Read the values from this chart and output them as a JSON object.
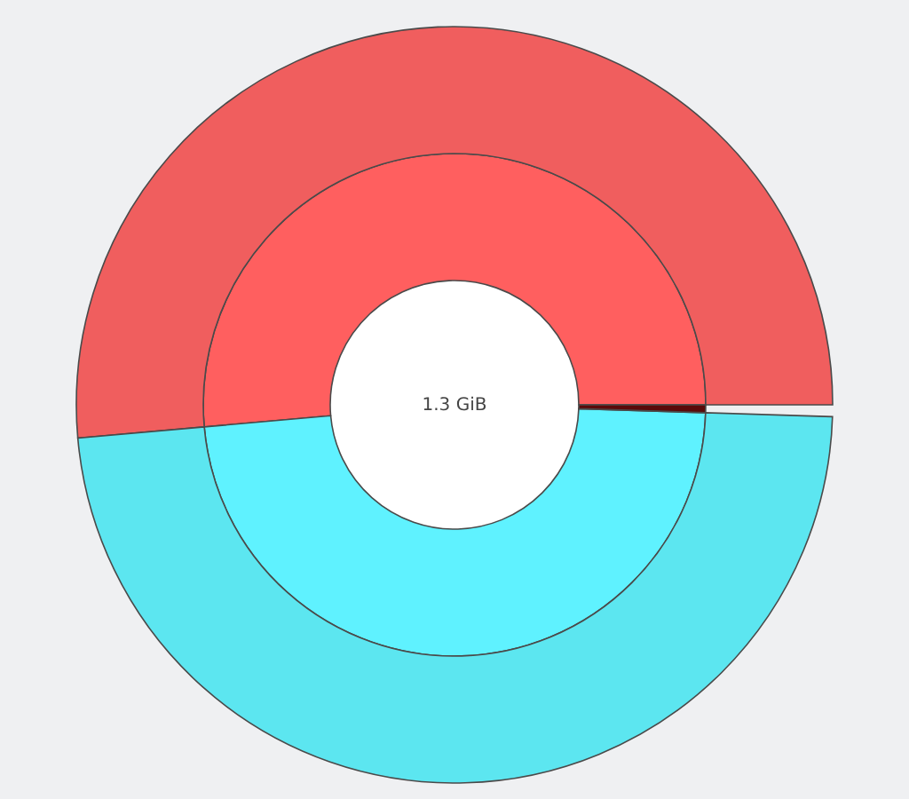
{
  "chart_data": {
    "type": "donut",
    "categories": [
      null,
      null,
      null
    ],
    "series": [
      {
        "values": [
          51.4,
          48.1,
          0.5
        ],
        "colors": [
          "#ff5f5f",
          "#5ff2ff",
          "#5a0a0a"
        ]
      },
      {
        "values": [
          51.4,
          48.1,
          null
        ],
        "colors": [
          "#f05e5e",
          "#5ce6f0",
          null
        ]
      }
    ],
    "annotations": [
      "1.3 GiB"
    ]
  }
}
